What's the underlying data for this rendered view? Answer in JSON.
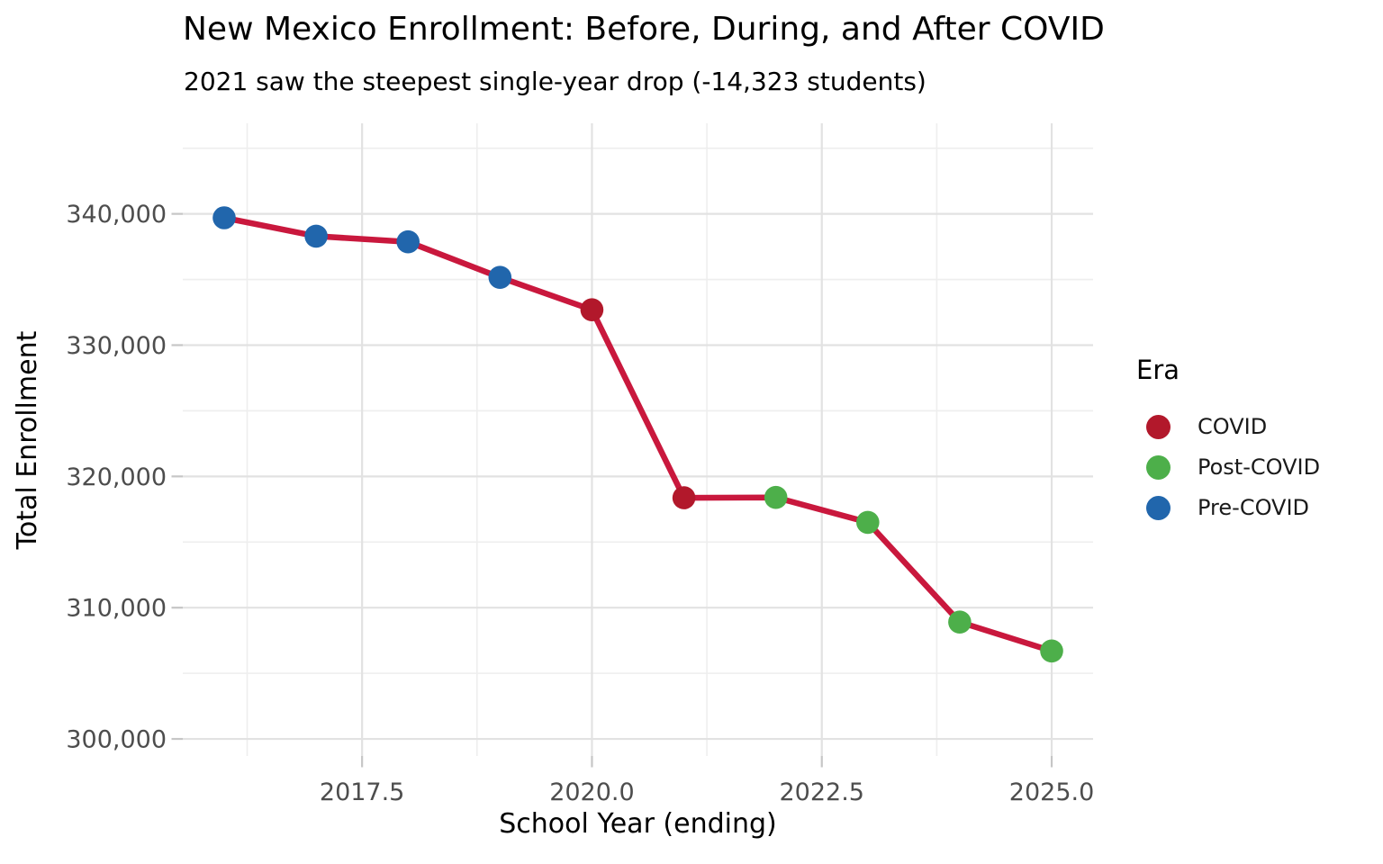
{
  "title": "New Mexico Enrollment: Before, During, and After COVID",
  "subtitle": "2021 saw the steepest single-year drop (-14,323 students)",
  "axes": {
    "x_label": "School Year (ending)",
    "y_label": "Total Enrollment"
  },
  "legend": {
    "title": "Era",
    "items": [
      {
        "label": "COVID",
        "color": "#B2182B"
      },
      {
        "label": "Post-COVID",
        "color": "#4DAF4A"
      },
      {
        "label": "Pre-COVID",
        "color": "#2166AC"
      }
    ]
  },
  "chart_data": {
    "type": "line",
    "title": "New Mexico Enrollment: Before, During, and After COVID",
    "subtitle": "2021 saw the steepest single-year drop (-14,323 students)",
    "xlabel": "School Year (ending)",
    "ylabel": "Total Enrollment",
    "points": [
      {
        "year": 2016,
        "value": 339700,
        "era": "Pre-COVID"
      },
      {
        "year": 2017,
        "value": 338300,
        "era": "Pre-COVID"
      },
      {
        "year": 2018,
        "value": 337870,
        "era": "Pre-COVID"
      },
      {
        "year": 2019,
        "value": 335160,
        "era": "Pre-COVID"
      },
      {
        "year": 2020,
        "value": 332693,
        "era": "COVID"
      },
      {
        "year": 2021,
        "value": 318370,
        "era": "COVID"
      },
      {
        "year": 2022,
        "value": 318400,
        "era": "Post-COVID"
      },
      {
        "year": 2023,
        "value": 316500,
        "era": "Post-COVID"
      },
      {
        "year": 2024,
        "value": 308900,
        "era": "Post-COVID"
      },
      {
        "year": 2025,
        "value": 306700,
        "era": "Post-COVID"
      }
    ],
    "era_colors": {
      "COVID": "#B2182B",
      "Post-COVID": "#4DAF4A",
      "Pre-COVID": "#2166AC"
    },
    "line_color": "#C9183D",
    "x_range": [
      2015.55,
      2025.45
    ],
    "y_range": [
      298700,
      346900
    ],
    "x_ticks": [
      2017.5,
      2020.0,
      2022.5,
      2025.0
    ],
    "x_tick_labels": [
      "2017.5",
      "2020.0",
      "2022.5",
      "2025.0"
    ],
    "x_minor_ticks": [
      2016.25,
      2018.75,
      2021.25,
      2023.75
    ],
    "y_ticks": [
      300000,
      310000,
      320000,
      330000,
      340000
    ],
    "y_tick_labels": [
      "300,000",
      "310,000",
      "320,000",
      "330,000",
      "340,000"
    ],
    "y_minor_ticks": [
      305000,
      315000,
      325000,
      335000,
      345000
    ],
    "grid": true,
    "legend_position": "right",
    "colors": {
      "grid_major": "#E2E2E2",
      "grid_minor": "#EEEEEE",
      "axis_tick": "#C6C6C6",
      "tick_label": "#4D4D4D"
    }
  }
}
